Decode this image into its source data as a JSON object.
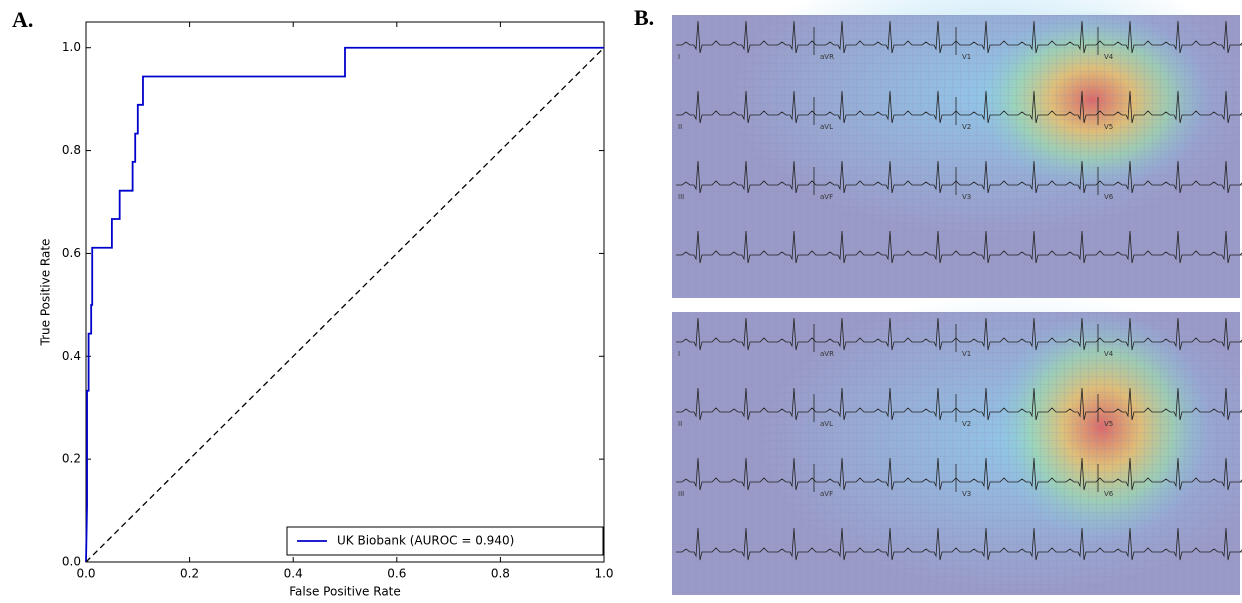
{
  "panels": [
    "A.",
    "B."
  ],
  "ecg_leads": [
    "I",
    "aVR",
    "V1",
    "V4",
    "II",
    "aVL",
    "V2",
    "V5",
    "III",
    "aVF",
    "V3",
    "V6"
  ],
  "chart_data": {
    "type": "line",
    "xlabel": "False Positive Rate",
    "ylabel": "True Positive Rate",
    "xlim": [
      0,
      1
    ],
    "ylim": [
      0,
      1.05
    ],
    "xticks": [
      {
        "value": 0,
        "label": "0.0"
      },
      0.2,
      0.4,
      0.6,
      0.8,
      {
        "value": 1,
        "label": "1.0"
      }
    ],
    "yticks": [
      {
        "value": 0,
        "label": "0.0"
      },
      0.2,
      0.4,
      0.6,
      0.8,
      {
        "value": 1,
        "label": "1.0"
      }
    ],
    "legend": "lower right",
    "series": [
      {
        "name": "UK Biobank (AUROC = 0.940)",
        "color": "#0000cc",
        "dash": false,
        "x": [
          0,
          0.002,
          0.002,
          0.005,
          0.005,
          0.01,
          0.01,
          0.012,
          0.012,
          0.05,
          0.05,
          0.065,
          0.065,
          0.09,
          0.09,
          0.095,
          0.095,
          0.1,
          0.1,
          0.11,
          0.11,
          0.5,
          0.5,
          1.0
        ],
        "values": [
          0,
          0.11,
          0.333,
          0.333,
          0.444,
          0.444,
          0.5,
          0.5,
          0.611,
          0.611,
          0.667,
          0.667,
          0.722,
          0.722,
          0.778,
          0.778,
          0.833,
          0.833,
          0.889,
          0.889,
          0.944,
          0.944,
          1.0,
          1.0
        ]
      },
      {
        "color": "#000000",
        "dash": true,
        "x": [
          0,
          1
        ],
        "values": [
          0,
          1
        ]
      }
    ]
  }
}
